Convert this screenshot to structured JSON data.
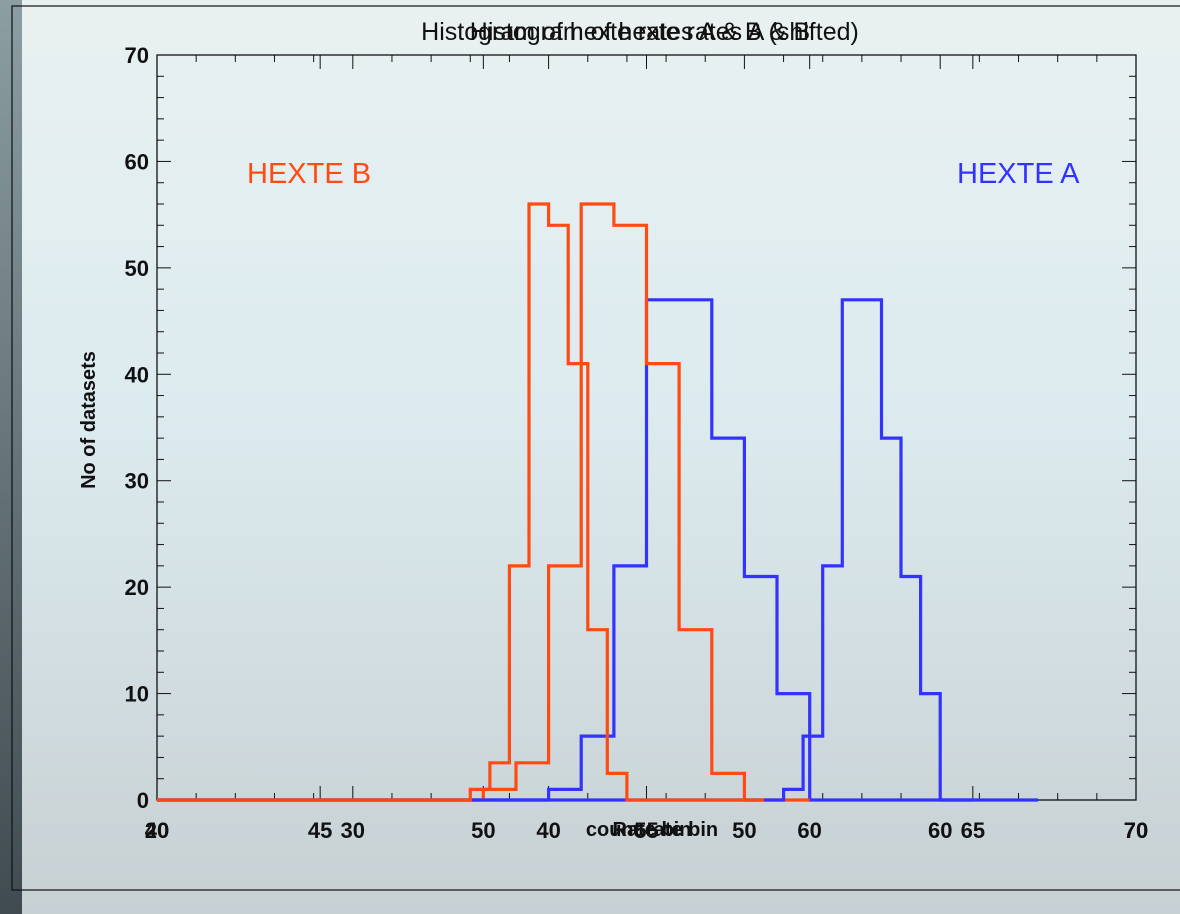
{
  "chart_data": [
    {
      "type": "step",
      "title": "Histogram of hexte rates A & B (shifted)",
      "xlabel": "Rate bin",
      "ylabel": "No of datasets",
      "xlim": [
        20,
        70
      ],
      "ylim": [
        0,
        70
      ],
      "x_tick_labels": [
        "20",
        "30",
        "40",
        "50",
        "60",
        "70"
      ],
      "y_tick_labels": [
        "0",
        "10",
        "20",
        "30",
        "40",
        "50",
        "60",
        "70"
      ],
      "grid": false,
      "series": [
        {
          "name": "HEXTE B",
          "color": "#ff4a12",
          "x": [
            20,
            36,
            37,
            38,
            39,
            40,
            41,
            42,
            43,
            44,
            45,
            46,
            47,
            48,
            49,
            50,
            51
          ],
          "y": [
            0,
            1,
            3.5,
            22,
            56,
            54,
            41,
            16,
            2.5,
            0,
            0,
            0,
            0,
            0,
            0,
            0,
            0
          ]
        },
        {
          "name": "HEXTE A",
          "color": "#3333ff",
          "x": [
            20,
            51,
            52,
            53,
            54,
            55,
            56,
            57,
            58,
            59,
            60,
            61,
            62,
            63,
            64,
            65
          ],
          "y": [
            0,
            0,
            1,
            6,
            22,
            47,
            47,
            34,
            21,
            10,
            0,
            0,
            0,
            0,
            0,
            0
          ]
        }
      ]
    },
    {
      "type": "step",
      "title": "Histogram of hexte rates A & B",
      "xlabel": "count rate bin",
      "xlim": [
        40,
        70
      ],
      "x_tick_labels": [
        "40",
        "45",
        "50",
        "55",
        "60",
        "65",
        "70"
      ],
      "series": [
        {
          "name": "HEXTE B",
          "color": "#ff4a12",
          "x": [
            40,
            50,
            51,
            52,
            53,
            54,
            55,
            56,
            57,
            58,
            59,
            60
          ],
          "y": [
            0,
            1,
            3.5,
            22,
            56,
            54,
            41,
            16,
            2.5,
            0,
            0,
            0
          ]
        },
        {
          "name": "HEXTE A",
          "color": "#3333ff",
          "x": [
            40,
            51,
            52,
            53,
            54,
            55,
            56,
            57,
            58,
            59,
            60,
            61,
            62,
            63,
            64,
            65
          ],
          "y": [
            0,
            0,
            1,
            6,
            22,
            47,
            47,
            34,
            21,
            10,
            0,
            0,
            0,
            0,
            0,
            0
          ]
        }
      ]
    }
  ],
  "legend": {
    "hexte_b": "HEXTE B",
    "hexte_a": "HEXTE A",
    "color_b": "#ff4a12",
    "color_a": "#3333ff"
  }
}
